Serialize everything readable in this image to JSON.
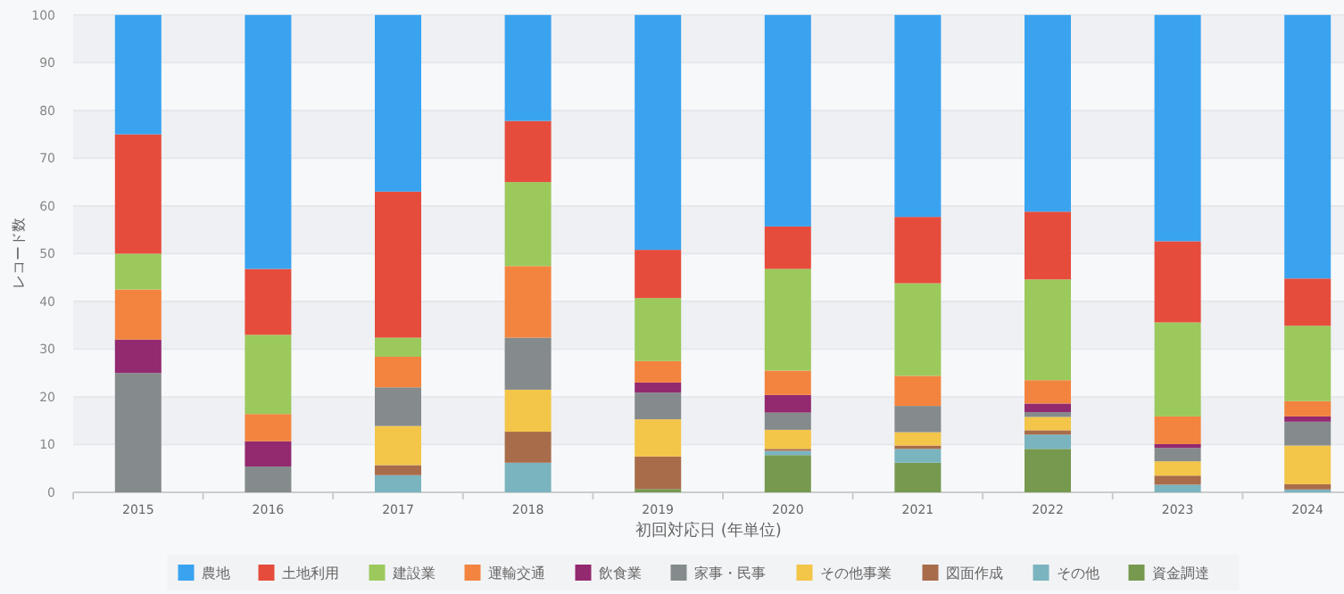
{
  "chart_data": {
    "type": "bar",
    "stacked": true,
    "xlabel": "初回対応日 (年単位)",
    "ylabel": "レコード数",
    "categories": [
      "2015",
      "2016",
      "2017",
      "2018",
      "2019",
      "2020",
      "2021",
      "2022",
      "2023",
      "2024"
    ],
    "ylim": [
      0,
      100
    ],
    "yticks": [
      0,
      10,
      20,
      30,
      40,
      50,
      60,
      70,
      80,
      90,
      100
    ],
    "grid": "y",
    "legend": "bottom",
    "series": [
      {
        "name": "資金調達",
        "color": "#76994f",
        "values": [
          0,
          0,
          0,
          0,
          0.7,
          7.8,
          6.2,
          9.1,
          0,
          0
        ]
      },
      {
        "name": "その他",
        "color": "#7ab4bf",
        "values": [
          0,
          0,
          3.6,
          6.2,
          0,
          0.9,
          2.9,
          3.0,
          1.6,
          0.6
        ]
      },
      {
        "name": "図面作成",
        "color": "#a86c4a",
        "values": [
          0,
          0,
          2.1,
          6.5,
          6.8,
          0.4,
          0.7,
          0.9,
          1.9,
          1.1
        ]
      },
      {
        "name": "その他事業",
        "color": "#f3c549",
        "values": [
          0,
          0,
          8.2,
          8.8,
          7.8,
          4.0,
          2.8,
          2.8,
          3.0,
          8.1
        ]
      },
      {
        "name": "家事・民事",
        "color": "#858b8c",
        "values": [
          25,
          5.4,
          8.1,
          10.9,
          5.6,
          3.6,
          5.5,
          1.0,
          2.8,
          5.0
        ]
      },
      {
        "name": "飲食業",
        "color": "#93296f",
        "values": [
          7,
          5.3,
          0,
          0,
          2.1,
          3.7,
          0,
          1.8,
          0.8,
          1.1
        ]
      },
      {
        "name": "運輸交通",
        "color": "#f3843f",
        "values": [
          10.5,
          5.7,
          6.4,
          15.0,
          4.5,
          5.1,
          6.3,
          4.9,
          5.8,
          3.2
        ]
      },
      {
        "name": "建設業",
        "color": "#9cc95c",
        "values": [
          7.5,
          16.6,
          4.0,
          17.6,
          13.2,
          21.3,
          19.4,
          21.1,
          19.7,
          15.8
        ]
      },
      {
        "name": "土地利用",
        "color": "#e64c3c",
        "values": [
          25,
          13.8,
          30.6,
          12.8,
          10.1,
          8.9,
          13.9,
          14.2,
          17.0,
          9.9
        ]
      },
      {
        "name": "農地",
        "color": "#3aa3f0",
        "values": [
          25,
          53.2,
          37.0,
          22.2,
          49.2,
          44.3,
          42.3,
          41.2,
          47.4,
          55.2
        ]
      }
    ]
  }
}
